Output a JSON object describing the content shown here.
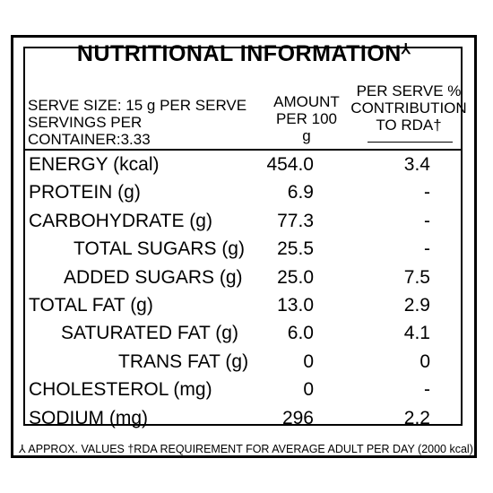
{
  "title": "NUTRITIONAL INFORMATION",
  "title_mark": "⅄",
  "header": {
    "serve_size": "SERVE SIZE: 15 g PER SERVE",
    "servings_per_container": "SERVINGS PER CONTAINER:3.33",
    "amount_line1": "AMOUNT",
    "amount_line2": "PER 100 g",
    "rda_line1": "PER SERVE %",
    "rda_line2": "CONTRIBUTION",
    "rda_line3": "TO RDA†"
  },
  "rows": [
    {
      "name": "ENERGY (kcal)",
      "amount": "454.0",
      "rda": "3.4"
    },
    {
      "name": "PROTEIN (g)",
      "amount": "6.9",
      "rda": "-"
    },
    {
      "name": "CARBOHYDRATE (g)",
      "amount": "77.3",
      "rda": "-"
    },
    {
      "name": "TOTAL SUGARS (g)",
      "amount": "25.5",
      "rda": "-"
    },
    {
      "name": "ADDED SUGARS (g)",
      "amount": "25.0",
      "rda": "7.5"
    },
    {
      "name": "TOTAL FAT (g)",
      "amount": "13.0",
      "rda": "2.9"
    },
    {
      "name": "SATURATED FAT (g)",
      "amount": "6.0",
      "rda": "4.1"
    },
    {
      "name": "TRANS FAT (g)",
      "amount": "0",
      "rda": "0"
    },
    {
      "name": "CHOLESTEROL (mg)",
      "amount": "0",
      "rda": "-"
    },
    {
      "name": "SODIUM (mg)",
      "amount": "296",
      "rda": "2.2"
    }
  ],
  "footer": "⅄ APPROX. VALUES †RDA REQUIREMENT FOR AVERAGE ADULT PER DAY (2000 kcal)"
}
